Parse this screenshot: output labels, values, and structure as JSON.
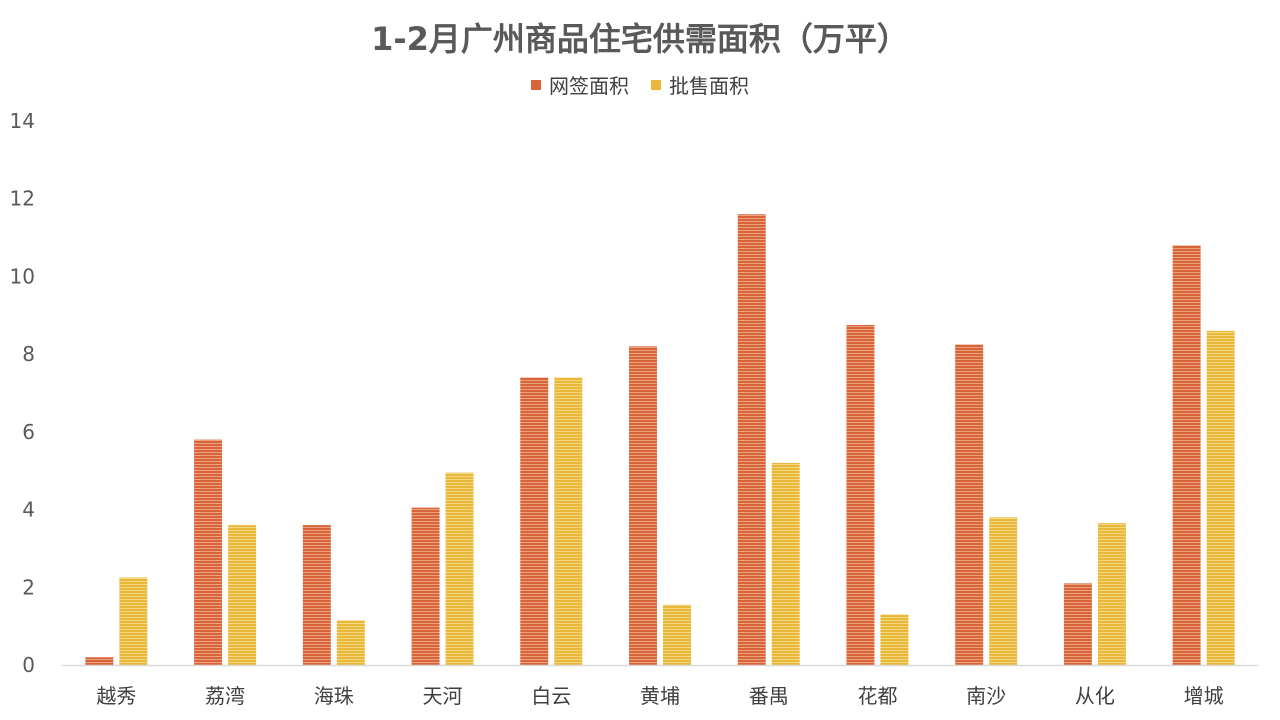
{
  "chart_data": {
    "type": "bar",
    "title": "1-2月广州商品住宅供需面积（万平）",
    "categories": [
      "越秀",
      "荔湾",
      "海珠",
      "天河",
      "白云",
      "黄埔",
      "番禺",
      "花都",
      "南沙",
      "从化",
      "增城"
    ],
    "series": [
      {
        "name": "网签面积",
        "color": "#d8643a",
        "values": [
          0.2,
          5.8,
          3.6,
          4.05,
          7.4,
          8.2,
          11.6,
          8.75,
          8.25,
          2.1,
          10.8
        ]
      },
      {
        "name": "批售面积",
        "color": "#e9b83a",
        "values": [
          2.25,
          3.6,
          1.15,
          4.95,
          7.4,
          1.55,
          5.2,
          1.3,
          3.8,
          3.65,
          8.6
        ]
      }
    ],
    "ylim": [
      0,
      14
    ],
    "yticks": [
      0,
      2,
      4,
      6,
      8,
      10,
      12,
      14
    ],
    "grid": false,
    "legend_position": "top-center"
  }
}
